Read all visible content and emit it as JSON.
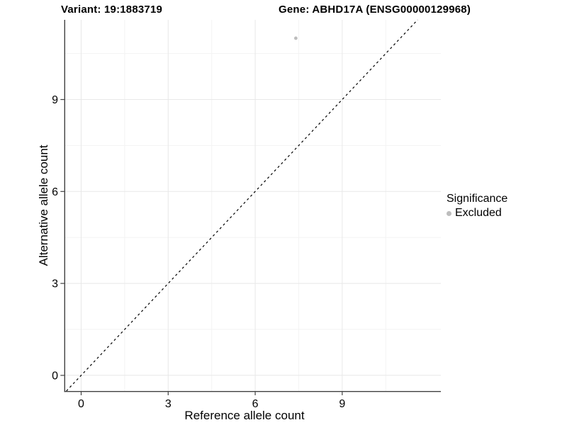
{
  "chart_data": {
    "type": "scatter",
    "title_variant": "Variant: 19:1883719",
    "title_gene": "Gene: ABHD17A (ENSG00000129968)",
    "xlabel": "Reference allele count",
    "ylabel": "Alternative allele count",
    "x_ticks": [
      0,
      3,
      6,
      9
    ],
    "y_ticks": [
      0,
      3,
      6,
      9
    ],
    "x_minor_gridlines": [
      1.5,
      4.5,
      7.5,
      10.5
    ],
    "y_minor_gridlines": [
      1.5,
      4.5,
      7.5,
      10.5
    ],
    "xlim": [
      -0.55,
      12.4
    ],
    "ylim": [
      -0.51,
      11.6
    ],
    "grid": true,
    "points": [
      {
        "x": 7.4,
        "y": 11.0,
        "significance": "Excluded"
      }
    ],
    "reference_line": {
      "type": "identity y=x",
      "style": "dashed",
      "color": "#000000"
    },
    "legend": {
      "title": "Significance",
      "position": "right",
      "entries": [
        {
          "label": "Excluded",
          "color": "#bdbdbd"
        }
      ]
    },
    "colors": {
      "excluded_point": "#bdbdbd",
      "grid_major": "#e8e8e8",
      "grid_minor": "#f3f3f3",
      "axis_line": "#404040",
      "tick_mark": "#404040",
      "text": "#000000",
      "background": "#ffffff"
    }
  }
}
